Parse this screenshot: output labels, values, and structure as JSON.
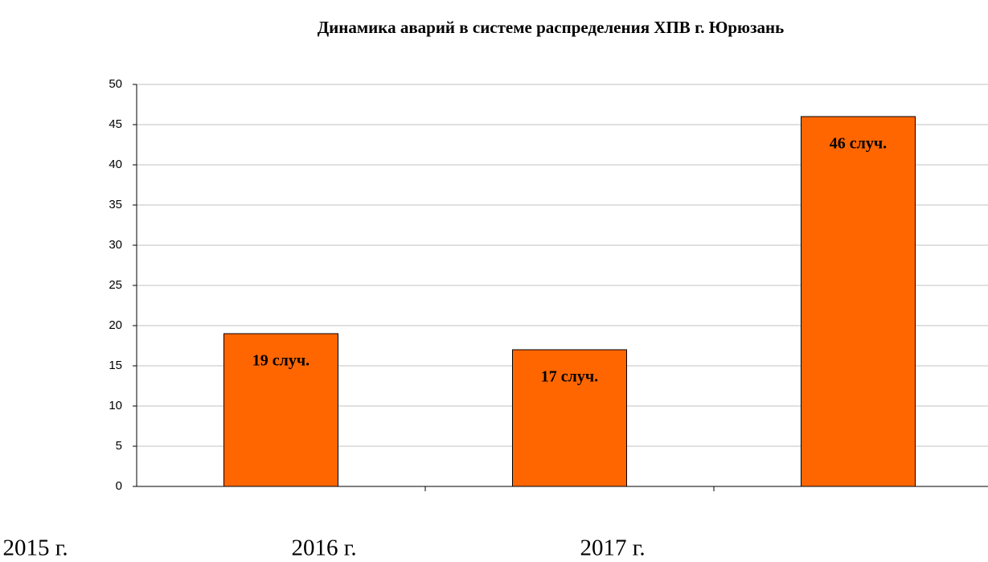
{
  "chart_data": {
    "type": "bar",
    "title": "Динамика аварий в системе распределения ХПВ г. Юрюзань",
    "categories": [
      "2015 г.",
      "2016 г.",
      "2017 г."
    ],
    "values": [
      19,
      17,
      46
    ],
    "value_labels": [
      "19 случ.",
      "17 случ.",
      "46 случ."
    ],
    "color": "#ff6600",
    "ylim": [
      0,
      50
    ],
    "yticks": [
      0,
      5,
      10,
      15,
      20,
      25,
      30,
      35,
      40,
      45,
      50
    ],
    "grid": true
  }
}
